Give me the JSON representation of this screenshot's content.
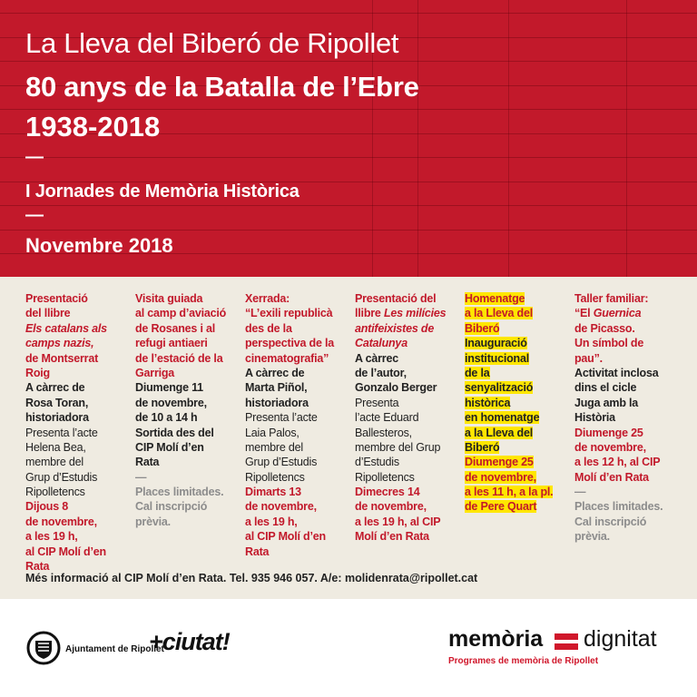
{
  "header": {
    "line1": "La Lleva del Biberó de Ripollet",
    "line2": "80 anys de la Batalla de l’Ebre",
    "line3": "1938-2018",
    "dash1": "—",
    "subtitle": "I Jornades de Memòria Històrica",
    "dash2": "—",
    "date": "Novembre 2018"
  },
  "columns": [
    {
      "blocks": [
        {
          "style": "red",
          "lines": [
            "Presentació",
            "del llibre"
          ]
        },
        {
          "style": "red-italic",
          "lines": [
            "Els catalans als",
            "camps nazis,"
          ]
        },
        {
          "style": "red",
          "lines": [
            "de Montserrat",
            "Roig"
          ]
        },
        {
          "style": "bold",
          "lines": [
            "A càrrec de",
            "Rosa Toran,",
            "historiadora"
          ]
        },
        {
          "style": "normal",
          "lines": [
            "Presenta l’acte",
            "Helena Bea,",
            "membre del",
            "Grup d’Estudis",
            "Ripolletencs"
          ]
        },
        {
          "style": "red",
          "lines": [
            "Dijous 8",
            "de novembre,",
            "a les 19 h,",
            "al CIP Molí d’en",
            "Rata"
          ]
        }
      ]
    },
    {
      "blocks": [
        {
          "style": "red",
          "lines": [
            "Visita guiada",
            "al camp d’aviació",
            "de Rosanes i al",
            "refugi antiaeri",
            "de l’estació de la",
            "Garriga"
          ]
        },
        {
          "style": "bold",
          "lines": [
            "Diumenge 11",
            "de novembre,",
            "de 10 a 14 h",
            "Sortida des del",
            "CIP Molí d’en",
            "Rata"
          ]
        },
        {
          "style": "gray",
          "lines": [
            "—",
            "Places limitades.",
            "Cal inscripció",
            "prèvia."
          ]
        }
      ]
    },
    {
      "blocks": [
        {
          "style": "red",
          "lines": [
            "Xerrada:",
            "“L’exili republicà",
            "des de la",
            "perspectiva de la",
            "cinematografia”"
          ]
        },
        {
          "style": "bold",
          "lines": [
            "A càrrec de",
            "Marta Piñol,",
            "historiadora"
          ]
        },
        {
          "style": "normal",
          "lines": [
            "Presenta l’acte",
            "Laia Palos,",
            "membre del",
            "Grup d’Estudis",
            "Ripolletencs"
          ]
        },
        {
          "style": "red",
          "lines": [
            "Dimarts 13",
            "de novembre,",
            "a les 19 h,",
            "al CIP Molí d’en",
            "Rata"
          ]
        }
      ]
    },
    {
      "blocks": [
        {
          "style": "red",
          "lines": [
            "Presentació del",
            [
              "llibre",
              "Les milícies"
            ]
          ]
        },
        {
          "style": "red-italic",
          "lines": [
            "antifeixistes de",
            "Catalunya"
          ]
        },
        {
          "style": "bold",
          "lines": [
            "A càrrec",
            "de l’autor,",
            "Gonzalo Berger"
          ]
        },
        {
          "style": "normal",
          "lines": [
            "Presenta",
            "l’acte Eduard",
            "Ballesteros,",
            "membre del Grup",
            "d’Estudis",
            "Ripolletencs"
          ]
        },
        {
          "style": "red",
          "lines": [
            "Dimecres 14",
            "de novembre,",
            "a les 19 h, al CIP",
            "Molí d’en Rata"
          ]
        }
      ]
    },
    {
      "highlight": true,
      "blocks": [
        {
          "style": "red",
          "lines": [
            "Homenatge",
            "a la Lleva del",
            "Biberó"
          ]
        },
        {
          "style": "bold",
          "lines": [
            "Inauguració",
            "institucional",
            "de la",
            "senyalització",
            "històrica",
            "en homenatge",
            "a la Lleva del",
            "Biberó"
          ]
        },
        {
          "style": "red",
          "lines": [
            "Diumenge 25",
            "de novembre,",
            "a les 11 h, a la pl.",
            "de Pere Quart"
          ]
        }
      ]
    },
    {
      "blocks": [
        {
          "style": "red",
          "lines": [
            "Taller familiar:",
            [
              "“El",
              "Guernica"
            ],
            "de Picasso.",
            "Un símbol de",
            "pau”."
          ]
        },
        {
          "style": "bold",
          "lines": [
            "Activitat inclosa",
            "dins el cicle",
            "Juga amb la",
            "Història"
          ]
        },
        {
          "style": "red",
          "lines": [
            "Diumenge 25",
            "de novembre,",
            "a les 12 h, al CIP",
            "Molí d’en Rata"
          ]
        },
        {
          "style": "gray",
          "lines": [
            "—",
            "Places limitades.",
            "Cal inscripció",
            "prèvia."
          ]
        }
      ]
    }
  ],
  "info": "Més informació al CIP Molí d’en Rata. Tel. 935 946 057. A/e: molidenrata@ripollet.cat",
  "footer": {
    "ajuntament": "Ajuntament de Ripollet",
    "ciutat": "+ciutat!",
    "memoria": "memòria",
    "dignitat": "dignitat",
    "programes": "Programes de memòria de Ripollet"
  }
}
